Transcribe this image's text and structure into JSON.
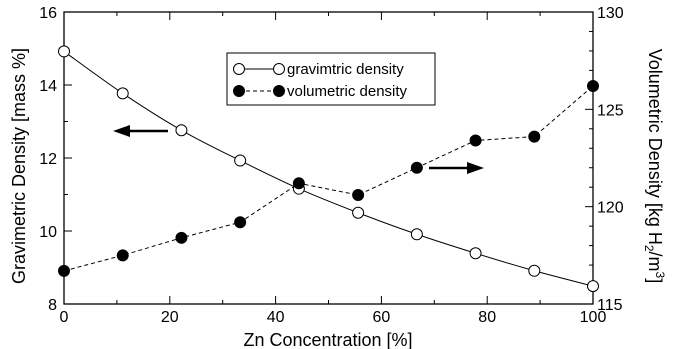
{
  "chart_data": {
    "type": "line",
    "xlabel": "Zn Concentration  [%]",
    "ylabel_left": "Gravimetric Density  [mass %]",
    "ylabel_right_parts": [
      "Volumetric Density  [kg H",
      "2",
      "/m",
      "3",
      "]"
    ],
    "xlim": [
      0,
      100
    ],
    "ylim_left": [
      8,
      16
    ],
    "ylim_right": [
      115,
      130
    ],
    "x_ticks": [
      0,
      20,
      40,
      60,
      80,
      100
    ],
    "y_left_ticks": [
      8,
      10,
      12,
      14,
      16
    ],
    "y_right_ticks": [
      115,
      120,
      125,
      130
    ],
    "x_tick_labels": [
      "0",
      "20",
      "40",
      "60",
      "80",
      "100"
    ],
    "y_left_tick_labels": [
      "8",
      "10",
      "12",
      "14",
      "16"
    ],
    "y_right_tick_labels": [
      "115",
      "120",
      "125",
      "130"
    ],
    "grid": false,
    "legend_position": "top-center",
    "series": [
      {
        "name": "gravimtric density",
        "axis": "left",
        "marker": "open-circle",
        "line": "solid",
        "x": [
          0,
          11.1,
          22.2,
          33.3,
          44.4,
          55.6,
          66.7,
          77.8,
          88.9,
          100
        ],
        "values": [
          14.92,
          13.77,
          12.76,
          11.93,
          11.16,
          10.5,
          9.91,
          9.39,
          8.91,
          8.49
        ]
      },
      {
        "name": "volumetric density",
        "axis": "right",
        "marker": "filled-circle",
        "line": "dashed",
        "x": [
          0,
          11.1,
          22.2,
          33.3,
          44.4,
          55.6,
          66.7,
          77.8,
          88.9,
          100
        ],
        "values": [
          116.7,
          117.5,
          118.4,
          119.2,
          121.2,
          120.6,
          122.0,
          123.4,
          123.6,
          126.2
        ]
      }
    ],
    "annotations": [
      {
        "type": "arrow",
        "direction": "left",
        "points_to_axis": "left"
      },
      {
        "type": "arrow",
        "direction": "right",
        "points_to_axis": "right"
      }
    ]
  }
}
